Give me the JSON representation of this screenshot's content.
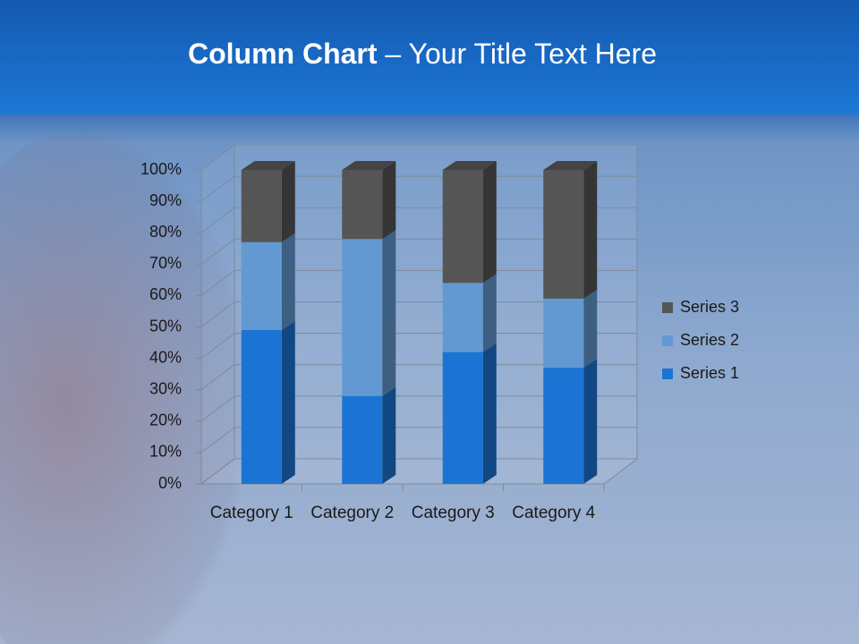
{
  "chart_data": {
    "type": "bar",
    "stacked": true,
    "three_d": true,
    "title": [
      "Column Chart",
      "– Your Title Text Here"
    ],
    "categories": [
      "Category 1",
      "Category 2",
      "Category 3",
      "Category 4"
    ],
    "series": [
      {
        "name": "Series 1",
        "color": "#1b74d4",
        "values": [
          49,
          28,
          42,
          37
        ]
      },
      {
        "name": "Series 2",
        "color": "#6299d2",
        "values": [
          28,
          50,
          22,
          22
        ]
      },
      {
        "name": "Series 3",
        "color": "#555555",
        "values": [
          23,
          22,
          36,
          41
        ]
      }
    ],
    "ylim": [
      0,
      100
    ],
    "yticks": [
      {
        "value": 0,
        "label": "0%"
      },
      {
        "value": 10,
        "label": "10%"
      },
      {
        "value": 20,
        "label": "20%"
      },
      {
        "value": 30,
        "label": "30%"
      },
      {
        "value": 40,
        "label": "40%"
      },
      {
        "value": 50,
        "label": "50%"
      },
      {
        "value": 60,
        "label": "60%"
      },
      {
        "value": 70,
        "label": "70%"
      },
      {
        "value": 80,
        "label": "80%"
      },
      {
        "value": 90,
        "label": "90%"
      },
      {
        "value": 100,
        "label": "100%"
      }
    ],
    "grid": true,
    "legend": "right"
  }
}
